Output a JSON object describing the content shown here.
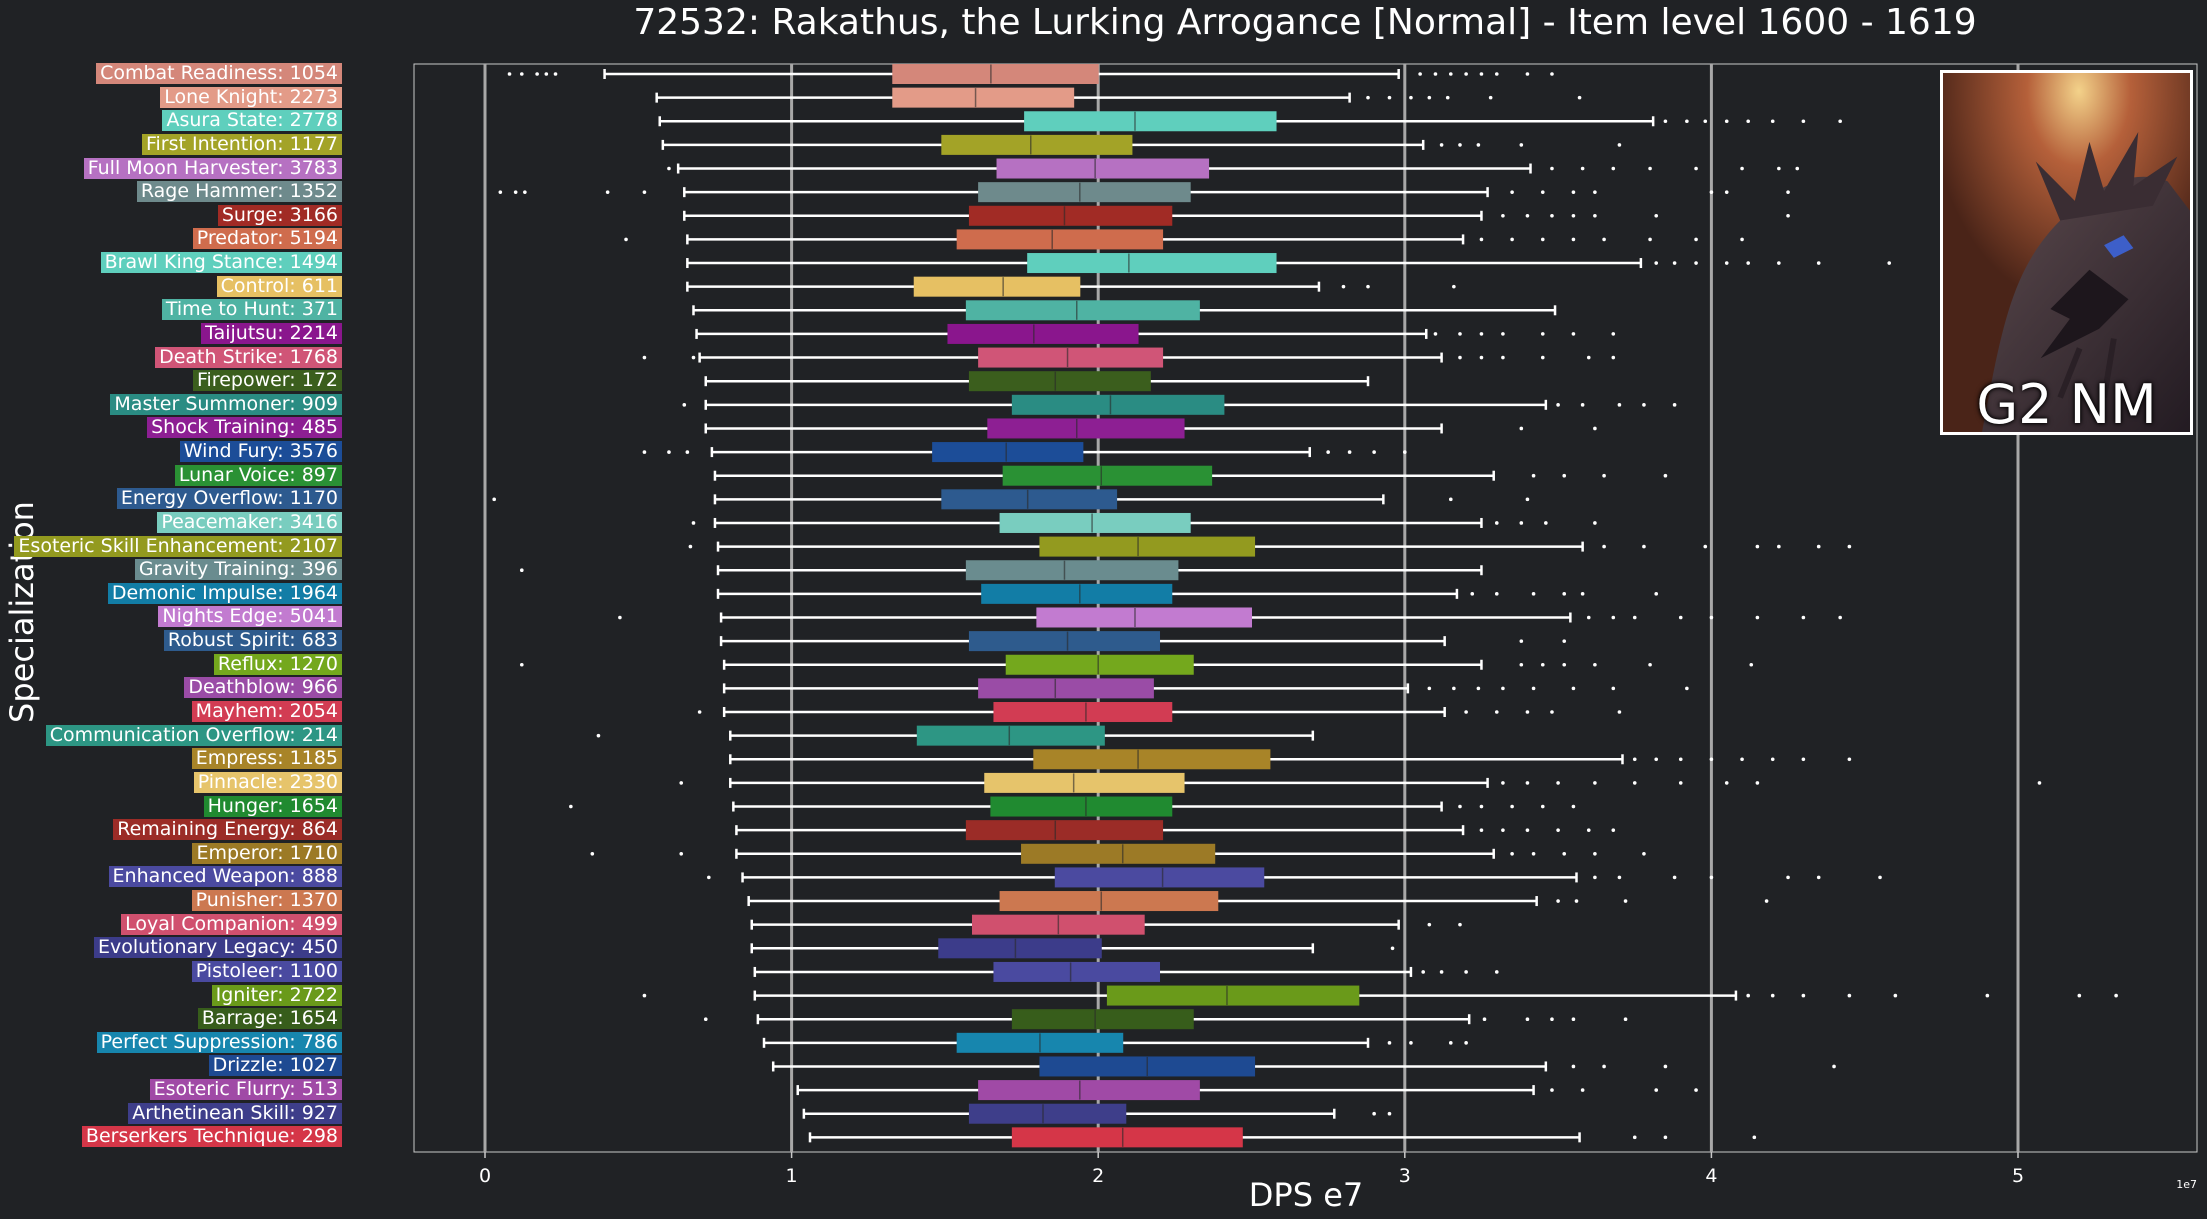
{
  "chart_data": {
    "type": "box",
    "title": "72532: Rakathus, the Lurking Arrogance [Normal] - Item level 1600 - 1619",
    "xlabel": "DPS e7",
    "ylabel": "Specialization",
    "x_offset_label": "1e7",
    "xlim": [
      -0.23,
      5.55
    ],
    "xticks": [
      0,
      1,
      2,
      3,
      4,
      5
    ],
    "xtick_labels": [
      "0",
      "1",
      "2",
      "3",
      "4",
      "5"
    ],
    "grid": "vertical lines at major ticks",
    "background": "#202225",
    "series": [
      {
        "label": "Combat Readiness: 1054",
        "color": "#d4877a",
        "whislo": 0.39,
        "q1": 1.33,
        "med": 1.65,
        "q3": 2.0,
        "whishi": 2.98,
        "fliers": [
          0.08,
          0.12,
          0.17,
          0.2,
          0.23,
          3.05,
          3.1,
          3.15,
          3.2,
          3.25,
          3.3,
          3.4,
          3.48
        ]
      },
      {
        "label": "Lone Knight: 2273",
        "color": "#e39b88",
        "whislo": 0.56,
        "q1": 1.33,
        "med": 1.6,
        "q3": 1.92,
        "whishi": 2.82,
        "fliers": [
          2.88,
          2.95,
          3.02,
          3.08,
          3.14,
          3.28,
          3.57
        ]
      },
      {
        "label": "Asura State: 2778",
        "color": "#5fcfbd",
        "whislo": 0.57,
        "q1": 1.76,
        "med": 2.12,
        "q3": 2.58,
        "whishi": 3.81,
        "fliers": [
          3.85,
          3.92,
          3.98,
          4.05,
          4.12,
          4.2,
          4.3,
          4.42
        ]
      },
      {
        "label": "First Intention: 1177",
        "color": "#a3a327",
        "whislo": 0.58,
        "q1": 1.49,
        "med": 1.78,
        "q3": 2.11,
        "whishi": 3.06,
        "fliers": [
          3.12,
          3.18,
          3.24,
          3.38,
          3.7
        ]
      },
      {
        "label": "Full Moon Harvester: 3783",
        "color": "#b671c2",
        "whislo": 0.63,
        "q1": 1.67,
        "med": 1.99,
        "q3": 2.36,
        "whishi": 3.41,
        "fliers": [
          0.6,
          3.48,
          3.58,
          3.68,
          3.8,
          3.95,
          4.1,
          4.22,
          4.28
        ]
      },
      {
        "label": "Rage Hammer: 1352",
        "color": "#6e8a8c",
        "whislo": 0.65,
        "q1": 1.61,
        "med": 1.94,
        "q3": 2.3,
        "whishi": 3.27,
        "fliers": [
          0.05,
          0.1,
          0.13,
          0.4,
          0.52,
          3.35,
          3.45,
          3.55,
          3.62,
          4.0,
          4.05,
          4.25
        ]
      },
      {
        "label": "Surge: 3166",
        "color": "#a12b25",
        "whislo": 0.65,
        "q1": 1.58,
        "med": 1.89,
        "q3": 2.24,
        "whishi": 3.25,
        "fliers": [
          3.32,
          3.4,
          3.48,
          3.55,
          3.62,
          3.82,
          4.25
        ]
      },
      {
        "label": "Predator: 5194",
        "color": "#cf6c4d",
        "whislo": 0.66,
        "q1": 1.54,
        "med": 1.85,
        "q3": 2.21,
        "whishi": 3.19,
        "fliers": [
          0.46,
          3.25,
          3.35,
          3.45,
          3.55,
          3.65,
          3.8,
          3.95,
          4.1
        ]
      },
      {
        "label": "Brawl King Stance: 1494",
        "color": "#5fcfbd",
        "whislo": 0.66,
        "q1": 1.77,
        "med": 2.1,
        "q3": 2.58,
        "whishi": 3.77,
        "fliers": [
          3.82,
          3.88,
          3.95,
          4.05,
          4.12,
          4.22,
          4.35,
          4.58
        ]
      },
      {
        "label": "Control: 611",
        "color": "#e6c063",
        "whislo": 0.66,
        "q1": 1.4,
        "med": 1.69,
        "q3": 1.94,
        "whishi": 2.72,
        "fliers": [
          2.8,
          2.88,
          3.16
        ]
      },
      {
        "label": "Time to Hunt: 371",
        "color": "#4fb3a3",
        "whislo": 0.68,
        "q1": 1.57,
        "med": 1.93,
        "q3": 2.33,
        "whishi": 3.49,
        "fliers": []
      },
      {
        "label": "Taijutsu: 2214",
        "color": "#8a168d",
        "whislo": 0.69,
        "q1": 1.51,
        "med": 1.79,
        "q3": 2.13,
        "whishi": 3.07,
        "fliers": [
          3.1,
          3.18,
          3.25,
          3.32,
          3.45,
          3.55,
          3.68
        ]
      },
      {
        "label": "Death Strike: 1768",
        "color": "#d05577",
        "whislo": 0.7,
        "q1": 1.61,
        "med": 1.9,
        "q3": 2.21,
        "whishi": 3.12,
        "fliers": [
          0.52,
          0.68,
          3.18,
          3.25,
          3.32,
          3.45,
          3.6,
          3.68
        ]
      },
      {
        "label": "Firepower: 172",
        "color": "#3b5e1d",
        "whislo": 0.72,
        "q1": 1.58,
        "med": 1.86,
        "q3": 2.17,
        "whishi": 2.88,
        "fliers": []
      },
      {
        "label": "Master Summoner: 909",
        "color": "#2a8c83",
        "whislo": 0.72,
        "q1": 1.72,
        "med": 2.04,
        "q3": 2.41,
        "whishi": 3.46,
        "fliers": [
          0.65,
          3.5,
          3.58,
          3.7,
          3.78,
          3.88
        ]
      },
      {
        "label": "Shock Training: 485",
        "color": "#8d1f93",
        "whislo": 0.72,
        "q1": 1.64,
        "med": 1.93,
        "q3": 2.28,
        "whishi": 3.12,
        "fliers": [
          3.38,
          3.62
        ]
      },
      {
        "label": "Wind Fury: 3576",
        "color": "#1c4d98",
        "whislo": 0.74,
        "q1": 1.46,
        "med": 1.7,
        "q3": 1.95,
        "whishi": 2.69,
        "fliers": [
          0.52,
          0.6,
          0.66,
          2.75,
          2.82,
          2.9,
          3.0
        ]
      },
      {
        "label": "Lunar Voice: 897",
        "color": "#2a9134",
        "whislo": 0.75,
        "q1": 1.69,
        "med": 2.01,
        "q3": 2.37,
        "whishi": 3.29,
        "fliers": [
          3.42,
          3.52,
          3.65,
          3.85
        ]
      },
      {
        "label": "Energy Overflow: 1170",
        "color": "#2d5a8f",
        "whislo": 0.75,
        "q1": 1.49,
        "med": 1.77,
        "q3": 2.06,
        "whishi": 2.93,
        "fliers": [
          0.03,
          3.15,
          3.4
        ]
      },
      {
        "label": "Peacemaker: 3416",
        "color": "#79cdbf",
        "whislo": 0.75,
        "q1": 1.68,
        "med": 1.98,
        "q3": 2.3,
        "whishi": 3.25,
        "fliers": [
          0.68,
          3.3,
          3.38,
          3.46,
          3.62
        ]
      },
      {
        "label": "Esoteric Skill Enhancement: 2107",
        "color": "#939a1f",
        "whislo": 0.76,
        "q1": 1.81,
        "med": 2.13,
        "q3": 2.51,
        "whishi": 3.58,
        "fliers": [
          0.67,
          3.65,
          3.78,
          3.98,
          4.15,
          4.22,
          4.35,
          4.45
        ]
      },
      {
        "label": "Gravity Training: 396",
        "color": "#6a8c8f",
        "whislo": 0.76,
        "q1": 1.57,
        "med": 1.89,
        "q3": 2.26,
        "whishi": 3.25,
        "fliers": [
          0.12
        ]
      },
      {
        "label": "Demonic Impulse: 1964",
        "color": "#127da6",
        "whislo": 0.76,
        "q1": 1.62,
        "med": 1.94,
        "q3": 2.24,
        "whishi": 3.17,
        "fliers": [
          3.22,
          3.3,
          3.42,
          3.52,
          3.58,
          3.82
        ]
      },
      {
        "label": "Nights Edge: 5041",
        "color": "#c27bd0",
        "whislo": 0.77,
        "q1": 1.8,
        "med": 2.12,
        "q3": 2.5,
        "whishi": 3.54,
        "fliers": [
          0.44,
          3.6,
          3.68,
          3.75,
          3.9,
          4.0,
          4.15,
          4.3,
          4.42
        ]
      },
      {
        "label": "Robust Spirit: 683",
        "color": "#2e5b8d",
        "whislo": 0.77,
        "q1": 1.58,
        "med": 1.9,
        "q3": 2.2,
        "whishi": 3.13,
        "fliers": [
          3.38,
          3.52
        ]
      },
      {
        "label": "Reflux: 1270",
        "color": "#74a81d",
        "whislo": 0.78,
        "q1": 1.7,
        "med": 2.0,
        "q3": 2.31,
        "whishi": 3.25,
        "fliers": [
          0.12,
          3.38,
          3.45,
          3.52,
          3.62,
          3.8,
          4.13
        ]
      },
      {
        "label": "Deathblow: 966",
        "color": "#9a4ca6",
        "whislo": 0.78,
        "q1": 1.61,
        "med": 1.86,
        "q3": 2.18,
        "whishi": 3.01,
        "fliers": [
          3.08,
          3.16,
          3.24,
          3.32,
          3.42,
          3.55,
          3.68,
          3.92
        ]
      },
      {
        "label": "Mayhem: 2054",
        "color": "#d23c53",
        "whislo": 0.78,
        "q1": 1.66,
        "med": 1.96,
        "q3": 2.24,
        "whishi": 3.13,
        "fliers": [
          0.7,
          3.2,
          3.3,
          3.4,
          3.48,
          3.7
        ]
      },
      {
        "label": "Communication Overflow: 214",
        "color": "#2d9684",
        "whislo": 0.8,
        "q1": 1.41,
        "med": 1.71,
        "q3": 2.02,
        "whishi": 2.7,
        "fliers": [
          0.37
        ]
      },
      {
        "label": "Empress: 1185",
        "color": "#a88428",
        "whislo": 0.8,
        "q1": 1.79,
        "med": 2.13,
        "q3": 2.56,
        "whishi": 3.71,
        "fliers": [
          3.75,
          3.82,
          3.9,
          4.0,
          4.1,
          4.2,
          4.3,
          4.45
        ]
      },
      {
        "label": "Pinnacle: 2330",
        "color": "#e6c46b",
        "whislo": 0.8,
        "q1": 1.63,
        "med": 1.92,
        "q3": 2.28,
        "whishi": 3.27,
        "fliers": [
          0.64,
          3.32,
          3.4,
          3.5,
          3.62,
          3.75,
          3.9,
          4.05,
          4.15,
          5.07
        ]
      },
      {
        "label": "Hunger: 1654",
        "color": "#208a30",
        "whislo": 0.81,
        "q1": 1.65,
        "med": 1.96,
        "q3": 2.24,
        "whishi": 3.12,
        "fliers": [
          0.28,
          3.18,
          3.25,
          3.35,
          3.45,
          3.55
        ]
      },
      {
        "label": "Remaining Energy: 864",
        "color": "#9b2c27",
        "whislo": 0.82,
        "q1": 1.57,
        "med": 1.86,
        "q3": 2.21,
        "whishi": 3.19,
        "fliers": [
          3.25,
          3.32,
          3.4,
          3.5,
          3.6,
          3.68
        ]
      },
      {
        "label": "Emperor: 1710",
        "color": "#9c7a26",
        "whislo": 0.82,
        "q1": 1.75,
        "med": 2.08,
        "q3": 2.38,
        "whishi": 3.29,
        "fliers": [
          0.35,
          0.64,
          3.35,
          3.42,
          3.52,
          3.62,
          3.78
        ]
      },
      {
        "label": "Enhanced Weapon: 888",
        "color": "#4b4aa0",
        "whislo": 0.84,
        "q1": 1.86,
        "med": 2.21,
        "q3": 2.54,
        "whishi": 3.56,
        "fliers": [
          0.73,
          3.62,
          3.7,
          3.88,
          4.0,
          4.25,
          4.35,
          4.55
        ]
      },
      {
        "label": "Punisher: 1370",
        "color": "#cc7850",
        "whislo": 0.86,
        "q1": 1.68,
        "med": 2.01,
        "q3": 2.39,
        "whishi": 3.43,
        "fliers": [
          3.5,
          3.56,
          3.72,
          4.18
        ]
      },
      {
        "label": "Loyal Companion: 499",
        "color": "#d0506e",
        "whislo": 0.87,
        "q1": 1.59,
        "med": 1.87,
        "q3": 2.15,
        "whishi": 2.98,
        "fliers": [
          3.08,
          3.18
        ]
      },
      {
        "label": "Evolutionary Legacy: 450",
        "color": "#3c3c8a",
        "whislo": 0.87,
        "q1": 1.48,
        "med": 1.73,
        "q3": 2.01,
        "whishi": 2.7,
        "fliers": [
          2.96
        ]
      },
      {
        "label": "Pistoleer: 1100",
        "color": "#4a4aa0",
        "whislo": 0.88,
        "q1": 1.66,
        "med": 1.91,
        "q3": 2.2,
        "whishi": 3.02,
        "fliers": [
          3.06,
          3.12,
          3.2,
          3.3
        ]
      },
      {
        "label": "Igniter: 2722",
        "color": "#6a9a1a",
        "whislo": 0.88,
        "q1": 2.03,
        "med": 2.42,
        "q3": 2.85,
        "whishi": 4.08,
        "fliers": [
          0.52,
          4.12,
          4.2,
          4.3,
          4.45,
          4.6,
          4.9,
          5.2,
          5.32
        ]
      },
      {
        "label": "Barrage: 1654",
        "color": "#375d1b",
        "whislo": 0.89,
        "q1": 1.72,
        "med": 1.99,
        "q3": 2.31,
        "whishi": 3.21,
        "fliers": [
          0.72,
          3.26,
          3.4,
          3.48,
          3.55,
          3.72
        ]
      },
      {
        "label": "Perfect Suppression: 786",
        "color": "#1786ae",
        "whislo": 0.91,
        "q1": 1.54,
        "med": 1.81,
        "q3": 2.08,
        "whishi": 2.88,
        "fliers": [
          2.95,
          3.02,
          3.15,
          3.2
        ]
      },
      {
        "label": "Drizzle: 1027",
        "color": "#1e4a92",
        "whislo": 0.94,
        "q1": 1.81,
        "med": 2.16,
        "q3": 2.51,
        "whishi": 3.46,
        "fliers": [
          3.55,
          3.65,
          3.85,
          4.4
        ]
      },
      {
        "label": "Esoteric Flurry: 513",
        "color": "#a04aa6",
        "whislo": 1.02,
        "q1": 1.61,
        "med": 1.94,
        "q3": 2.33,
        "whishi": 3.42,
        "fliers": [
          3.48,
          3.58,
          3.82,
          3.95
        ]
      },
      {
        "label": "Arthetinean Skill: 927",
        "color": "#3e3e8a",
        "whislo": 1.04,
        "q1": 1.58,
        "med": 1.82,
        "q3": 2.09,
        "whishi": 2.77,
        "fliers": [
          2.9,
          2.95
        ]
      },
      {
        "label": "Berserkers Technique: 298",
        "color": "#d53648",
        "whislo": 1.06,
        "q1": 1.72,
        "med": 2.08,
        "q3": 2.47,
        "whishi": 3.57,
        "fliers": [
          3.75,
          3.85,
          4.14
        ]
      }
    ]
  },
  "boss_card": {
    "tag": "G2 NM",
    "art": "dragon-head-portrait"
  }
}
